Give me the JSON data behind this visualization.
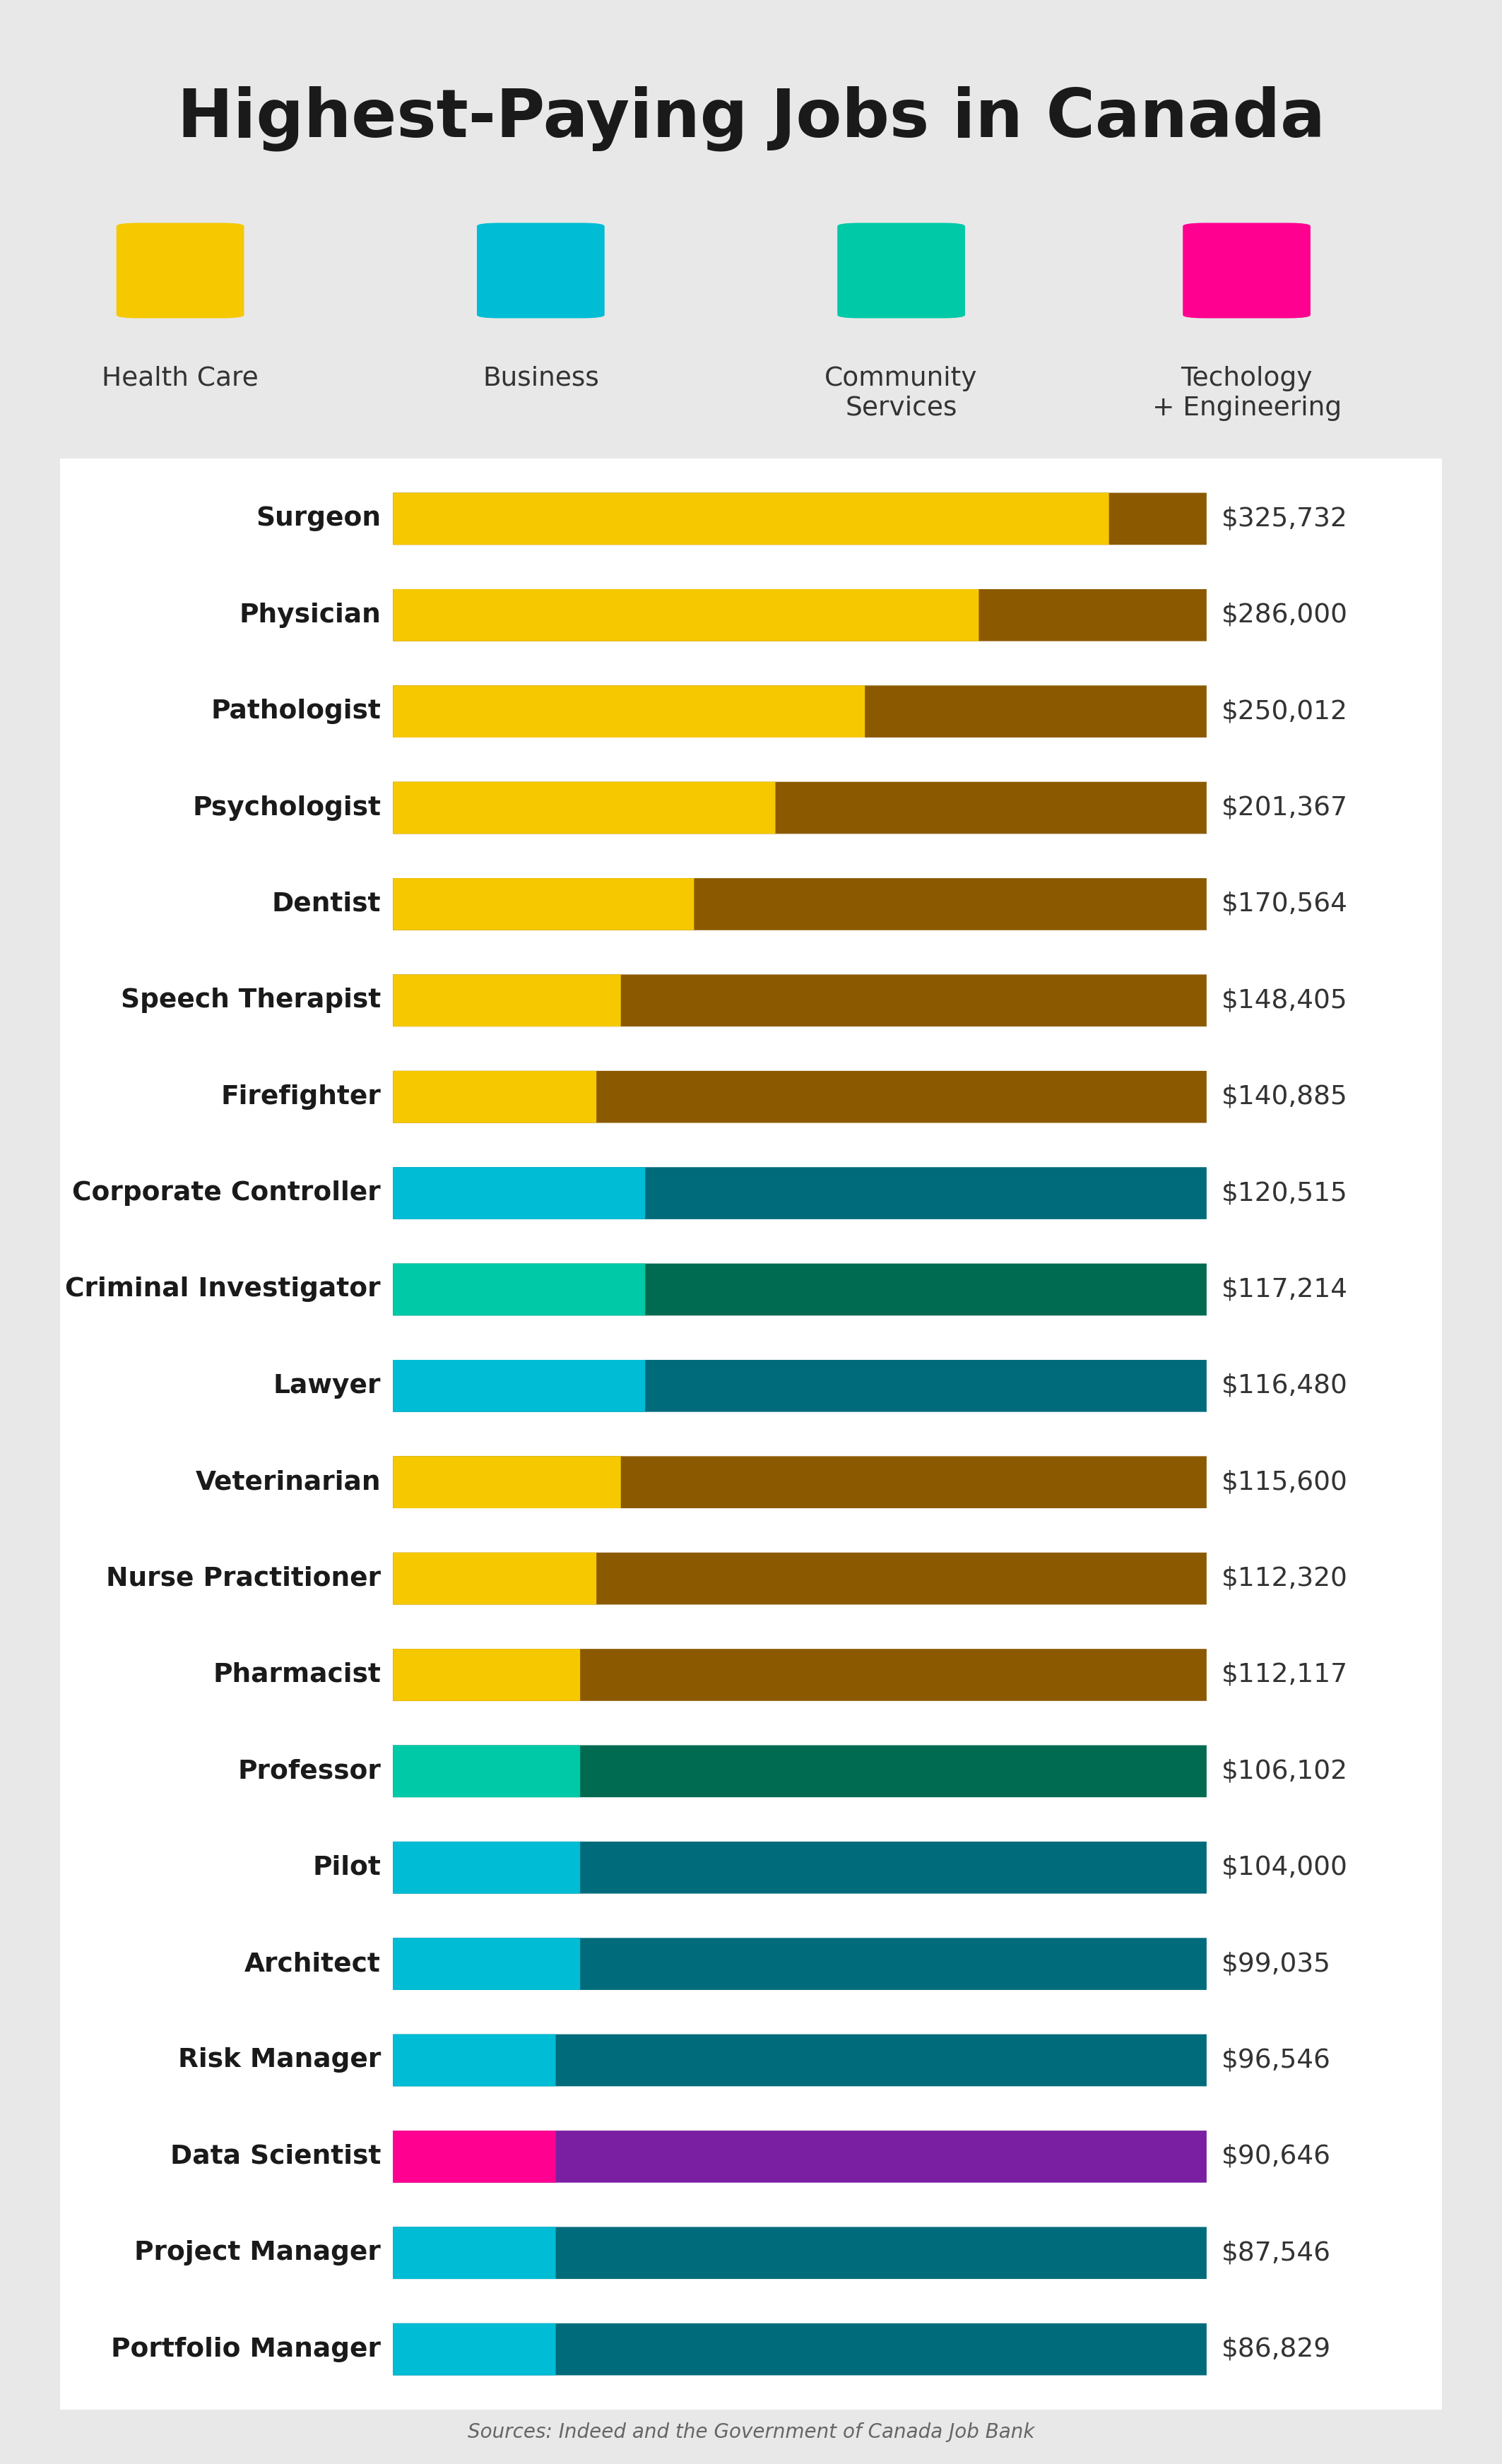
{
  "title": "Highest-Paying Jobs in Canada",
  "background_color": "#e8e8e8",
  "card_color": "#ffffff",
  "legend_items": [
    {
      "label": "Health Care",
      "color": "#f5c800"
    },
    {
      "label": "Business",
      "color": "#00bcd4"
    },
    {
      "label": "Community\nServices",
      "color": "#00c9a7"
    },
    {
      "label": "Techology\n+ Engineering",
      "color": "#ff0090"
    }
  ],
  "jobs": [
    {
      "name": "Surgeon",
      "salary_str": "$325,732",
      "color1": "#f5c800",
      "color2": "#8b5a00",
      "split": 0.88
    },
    {
      "name": "Physician",
      "salary_str": "$286,000",
      "color1": "#f5c800",
      "color2": "#8b5a00",
      "split": 0.72
    },
    {
      "name": "Pathologist",
      "salary_str": "$250,012",
      "color1": "#f5c800",
      "color2": "#8b5a00",
      "split": 0.58
    },
    {
      "name": "Psychologist",
      "salary_str": "$201,367",
      "color1": "#f5c800",
      "color2": "#8b5a00",
      "split": 0.47
    },
    {
      "name": "Dentist",
      "salary_str": "$170,564",
      "color1": "#f5c800",
      "color2": "#8b5a00",
      "split": 0.37
    },
    {
      "name": "Speech Therapist",
      "salary_str": "$148,405",
      "color1": "#f5c800",
      "color2": "#8b5a00",
      "split": 0.28
    },
    {
      "name": "Firefighter",
      "salary_str": "$140,885",
      "color1": "#f5c800",
      "color2": "#8b5a00",
      "split": 0.25
    },
    {
      "name": "Corporate Controller",
      "salary_str": "$120,515",
      "color1": "#00bcd4",
      "color2": "#006b7a",
      "split": 0.31
    },
    {
      "name": "Criminal Investigator",
      "salary_str": "$117,214",
      "color1": "#00c9a7",
      "color2": "#006b50",
      "split": 0.31
    },
    {
      "name": "Lawyer",
      "salary_str": "$116,480",
      "color1": "#00bcd4",
      "color2": "#006b7a",
      "split": 0.31
    },
    {
      "name": "Veterinarian",
      "salary_str": "$115,600",
      "color1": "#f5c800",
      "color2": "#8b5a00",
      "split": 0.28
    },
    {
      "name": "Nurse Practitioner",
      "salary_str": "$112,320",
      "color1": "#f5c800",
      "color2": "#8b5a00",
      "split": 0.25
    },
    {
      "name": "Pharmacist",
      "salary_str": "$112,117",
      "color1": "#f5c800",
      "color2": "#8b5a00",
      "split": 0.23
    },
    {
      "name": "Professor",
      "salary_str": "$106,102",
      "color1": "#00c9a7",
      "color2": "#006b50",
      "split": 0.23
    },
    {
      "name": "Pilot",
      "salary_str": "$104,000",
      "color1": "#00bcd4",
      "color2": "#006b7a",
      "split": 0.23
    },
    {
      "name": "Architect",
      "salary_str": "$99,035",
      "color1": "#00bcd4",
      "color2": "#006b7a",
      "split": 0.23
    },
    {
      "name": "Risk Manager",
      "salary_str": "$96,546",
      "color1": "#00bcd4",
      "color2": "#006b7a",
      "split": 0.2
    },
    {
      "name": "Data Scientist",
      "salary_str": "$90,646",
      "color1": "#ff0090",
      "color2": "#7b1fa2",
      "split": 0.2
    },
    {
      "name": "Project Manager",
      "salary_str": "$87,546",
      "color1": "#00bcd4",
      "color2": "#006b7a",
      "split": 0.2
    },
    {
      "name": "Portfolio Manager",
      "salary_str": "$86,829",
      "color1": "#00bcd4",
      "color2": "#006b7a",
      "split": 0.2
    }
  ],
  "source_text": "Sources: Indeed and the Government of Canada Job Bank"
}
